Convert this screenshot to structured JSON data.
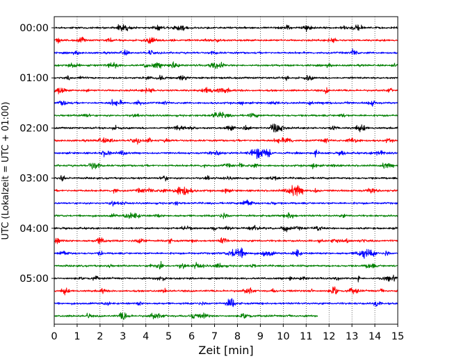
{
  "chart_data": {
    "type": "line",
    "title": "",
    "xlabel": "Zeit  [min]",
    "ylabel": "UTC (Lokalzeit = UTC + 01:00)",
    "xlim": [
      0,
      15
    ],
    "x_ticks": [
      "0",
      "1",
      "2",
      "3",
      "4",
      "5",
      "6",
      "7",
      "8",
      "9",
      "10",
      "11",
      "12",
      "13",
      "14",
      "15"
    ],
    "y_ticks": [
      "00:00",
      "01:00",
      "02:00",
      "03:00",
      "04:00",
      "05:00"
    ],
    "y_tick_rows": [
      0,
      4,
      8,
      12,
      16,
      20
    ],
    "grid": "vertical dotted lines at each minute",
    "trace_interval_min": 15,
    "traces": [
      {
        "start": "00:00",
        "color": "#000000",
        "end_min": 15
      },
      {
        "start": "00:15",
        "color": "#ff0000",
        "end_min": 15
      },
      {
        "start": "00:30",
        "color": "#0000ff",
        "end_min": 15
      },
      {
        "start": "00:45",
        "color": "#008000",
        "end_min": 15
      },
      {
        "start": "01:00",
        "color": "#000000",
        "end_min": 15
      },
      {
        "start": "01:15",
        "color": "#ff0000",
        "end_min": 15
      },
      {
        "start": "01:30",
        "color": "#0000ff",
        "end_min": 15
      },
      {
        "start": "01:45",
        "color": "#008000",
        "end_min": 15
      },
      {
        "start": "02:00",
        "color": "#000000",
        "end_min": 15
      },
      {
        "start": "02:15",
        "color": "#ff0000",
        "end_min": 15
      },
      {
        "start": "02:30",
        "color": "#0000ff",
        "end_min": 15
      },
      {
        "start": "02:45",
        "color": "#008000",
        "end_min": 15
      },
      {
        "start": "03:00",
        "color": "#000000",
        "end_min": 15
      },
      {
        "start": "03:15",
        "color": "#ff0000",
        "end_min": 15
      },
      {
        "start": "03:30",
        "color": "#0000ff",
        "end_min": 15
      },
      {
        "start": "03:45",
        "color": "#008000",
        "end_min": 15
      },
      {
        "start": "04:00",
        "color": "#000000",
        "end_min": 15
      },
      {
        "start": "04:15",
        "color": "#ff0000",
        "end_min": 15
      },
      {
        "start": "04:30",
        "color": "#0000ff",
        "end_min": 15
      },
      {
        "start": "04:45",
        "color": "#008000",
        "end_min": 15
      },
      {
        "start": "05:00",
        "color": "#000000",
        "end_min": 15
      },
      {
        "start": "05:15",
        "color": "#ff0000",
        "end_min": 15
      },
      {
        "start": "05:30",
        "color": "#0000ff",
        "end_min": 15
      },
      {
        "start": "05:45",
        "color": "#008000",
        "end_min": 11.5
      }
    ],
    "notable_events": [
      {
        "trace_start": "02:30",
        "minute": 8.9,
        "description": "largest burst"
      },
      {
        "trace_start": "03:15",
        "minute": 5.6,
        "description": "burst"
      },
      {
        "trace_start": "03:15",
        "minute": 10.5,
        "description": "burst"
      },
      {
        "trace_start": "04:30",
        "minute": 8.0,
        "description": "burst"
      }
    ]
  }
}
